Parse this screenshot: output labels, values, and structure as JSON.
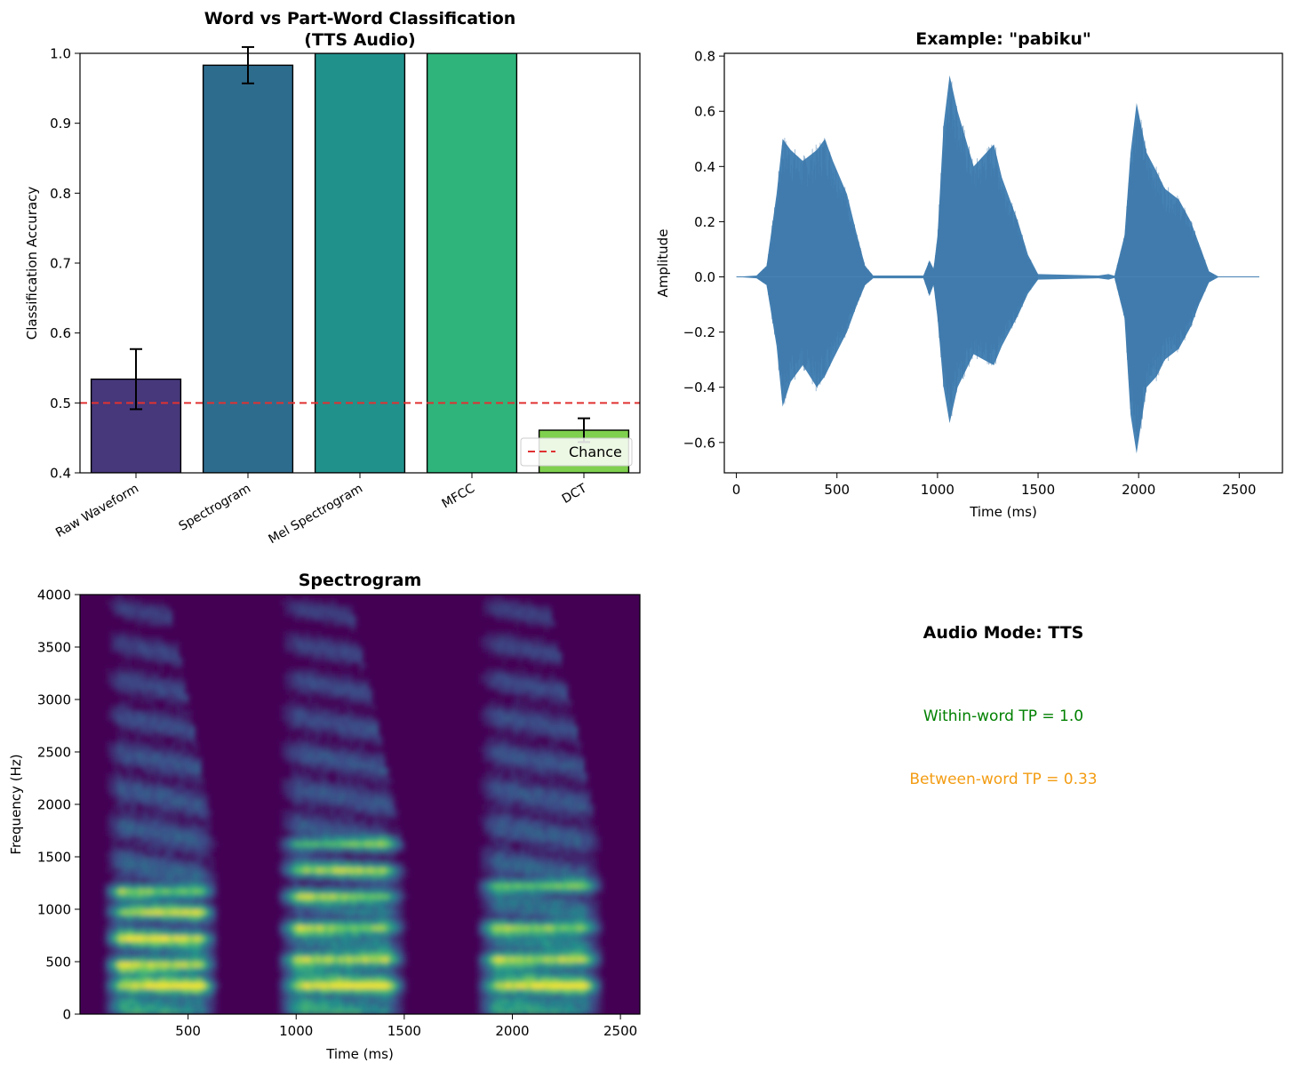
{
  "chart_data": [
    {
      "type": "bar",
      "title": "Word vs Part-Word Classification",
      "subtitle": "(TTS Audio)",
      "xlabel": "",
      "ylabel": "Classification Accuracy",
      "categories": [
        "Raw Waveform",
        "Spectrogram",
        "Mel Spectrogram",
        "MFCC",
        "DCT"
      ],
      "values": [
        0.534,
        0.983,
        1.0,
        1.0,
        0.461
      ],
      "errors": [
        0.043,
        0.026,
        0.0,
        0.0,
        0.017
      ],
      "colors": [
        "#46387a",
        "#2e6c8e",
        "#21918c",
        "#2fb47c",
        "#7fd04e"
      ],
      "ylim": [
        0.4,
        1.0
      ],
      "yticks": [
        "0.4",
        "0.5",
        "0.6",
        "0.7",
        "0.8",
        "0.9",
        "1.0"
      ],
      "reference_line": {
        "value": 0.5,
        "label": "Chance",
        "color": "#e03131"
      },
      "legend": "lower-right"
    },
    {
      "type": "line",
      "title": "Example: \"pabiku\"",
      "xlabel": "Time (ms)",
      "ylabel": "Amplitude",
      "xlim": [
        -60,
        2715
      ],
      "ylim": [
        -0.71,
        0.81
      ],
      "xticks": [
        "0",
        "500",
        "1000",
        "1500",
        "2000",
        "2500"
      ],
      "yticks": [
        "−0.6",
        "−0.4",
        "−0.2",
        "0.0",
        "0.2",
        "0.4",
        "0.6",
        "0.8"
      ],
      "color": "#4682b4",
      "envelope_upper": [
        [
          0,
          0
        ],
        [
          100,
          0.005
        ],
        [
          150,
          0.04
        ],
        [
          200,
          0.3
        ],
        [
          230,
          0.5
        ],
        [
          270,
          0.46
        ],
        [
          330,
          0.42
        ],
        [
          400,
          0.46
        ],
        [
          440,
          0.5
        ],
        [
          480,
          0.42
        ],
        [
          550,
          0.3
        ],
        [
          600,
          0.15
        ],
        [
          640,
          0.04
        ],
        [
          680,
          0.005
        ],
        [
          930,
          0.005
        ],
        [
          960,
          0.06
        ],
        [
          980,
          0.03
        ],
        [
          1000,
          0.15
        ],
        [
          1030,
          0.55
        ],
        [
          1060,
          0.73
        ],
        [
          1100,
          0.6
        ],
        [
          1180,
          0.4
        ],
        [
          1230,
          0.44
        ],
        [
          1280,
          0.48
        ],
        [
          1320,
          0.36
        ],
        [
          1400,
          0.2
        ],
        [
          1450,
          0.08
        ],
        [
          1500,
          0.01
        ],
        [
          1800,
          0.005
        ],
        [
          1850,
          0.01
        ],
        [
          1880,
          0.004
        ],
        [
          1930,
          0.15
        ],
        [
          1960,
          0.45
        ],
        [
          1990,
          0.63
        ],
        [
          2040,
          0.45
        ],
        [
          2090,
          0.38
        ],
        [
          2130,
          0.32
        ],
        [
          2200,
          0.28
        ],
        [
          2260,
          0.2
        ],
        [
          2300,
          0.12
        ],
        [
          2350,
          0.02
        ],
        [
          2400,
          0.0
        ],
        [
          2600,
          0.0
        ]
      ],
      "envelope_lower": [
        [
          0,
          0
        ],
        [
          100,
          -0.005
        ],
        [
          150,
          -0.03
        ],
        [
          200,
          -0.25
        ],
        [
          230,
          -0.47
        ],
        [
          270,
          -0.38
        ],
        [
          330,
          -0.32
        ],
        [
          400,
          -0.4
        ],
        [
          440,
          -0.36
        ],
        [
          480,
          -0.3
        ],
        [
          550,
          -0.2
        ],
        [
          600,
          -0.1
        ],
        [
          640,
          -0.03
        ],
        [
          680,
          -0.005
        ],
        [
          930,
          -0.005
        ],
        [
          960,
          -0.07
        ],
        [
          980,
          -0.03
        ],
        [
          1000,
          -0.15
        ],
        [
          1030,
          -0.4
        ],
        [
          1060,
          -0.53
        ],
        [
          1100,
          -0.4
        ],
        [
          1180,
          -0.28
        ],
        [
          1230,
          -0.3
        ],
        [
          1280,
          -0.32
        ],
        [
          1320,
          -0.25
        ],
        [
          1400,
          -0.14
        ],
        [
          1450,
          -0.06
        ],
        [
          1500,
          -0.01
        ],
        [
          1800,
          -0.005
        ],
        [
          1850,
          -0.01
        ],
        [
          1880,
          -0.004
        ],
        [
          1930,
          -0.15
        ],
        [
          1960,
          -0.5
        ],
        [
          1990,
          -0.64
        ],
        [
          2040,
          -0.4
        ],
        [
          2090,
          -0.36
        ],
        [
          2130,
          -0.3
        ],
        [
          2200,
          -0.26
        ],
        [
          2260,
          -0.18
        ],
        [
          2300,
          -0.1
        ],
        [
          2350,
          -0.02
        ],
        [
          2400,
          0.0
        ],
        [
          2600,
          0.0
        ]
      ]
    },
    {
      "type": "heatmap",
      "title": "Spectrogram",
      "xlabel": "Time (ms)",
      "ylabel": "Frequency (Hz)",
      "xlim": [
        0,
        2590
      ],
      "ylim": [
        0,
        4000
      ],
      "xticks": [
        "500",
        "1000",
        "1500",
        "2000",
        "2500"
      ],
      "yticks": [
        "0",
        "500",
        "1000",
        "1500",
        "2000",
        "2500",
        "3000",
        "3500",
        "4000"
      ],
      "colormap": [
        "#440154",
        "#3b528b",
        "#21918c",
        "#5ec962",
        "#fde725"
      ],
      "segments": [
        {
          "start": 95,
          "end": 640,
          "bright_bands": [
            250,
            450,
            700,
            950,
            1150
          ]
        },
        {
          "start": 900,
          "end": 1510,
          "bright_bands": [
            250,
            500,
            800,
            1100,
            1350,
            1600
          ]
        },
        {
          "start": 1820,
          "end": 2420,
          "bright_bands": [
            250,
            500,
            800,
            1200
          ]
        }
      ]
    }
  ],
  "info_panel": {
    "title": "Audio Mode: TTS",
    "within_word": "Within-word TP = 1.0",
    "between_word": "Between-word TP = 0.33",
    "within_color": "#008000",
    "between_color": "#f39c12"
  }
}
